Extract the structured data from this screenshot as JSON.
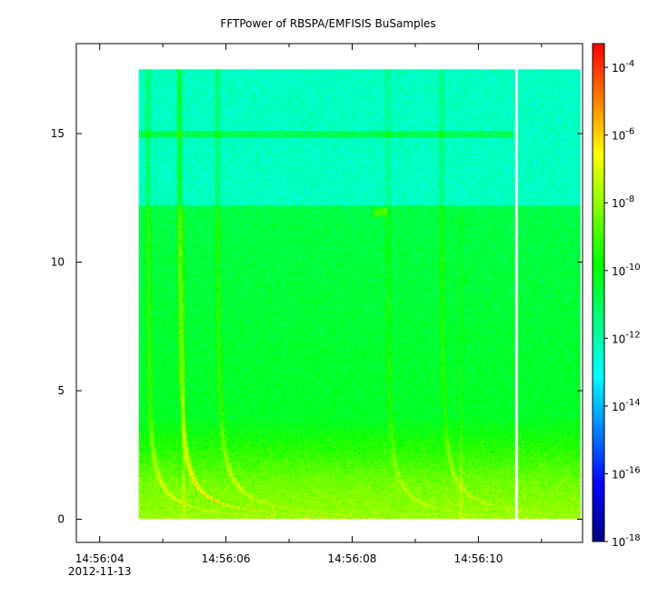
{
  "chart_data": {
    "type": "heatmap",
    "title": "FFTPower of RBSPA/EMFISIS  BuSamples",
    "xlabel": "",
    "ylabel": "",
    "x_ticks": [
      {
        "label": "14:56:04",
        "sublabel": "2012-11-13",
        "value": 4
      },
      {
        "label": "14:56:06",
        "value": 6
      },
      {
        "label": "14:56:08",
        "value": 8
      },
      {
        "label": "14:56:10",
        "value": 10
      }
    ],
    "x_minor_ticks": [
      5,
      7,
      9,
      11
    ],
    "xlim": [
      3.63,
      11.65
    ],
    "y_ticks": [
      0,
      5,
      10,
      15
    ],
    "ylim": [
      -0.9,
      18.5
    ],
    "data_x_range": [
      4.62,
      11.62
    ],
    "data_y_range": [
      0,
      17.5
    ],
    "gap_x_range": [
      10.57,
      10.62
    ],
    "colorbar": {
      "scale": "log",
      "range_exp": [
        -18,
        -3.3
      ],
      "ticks": [
        {
          "base": "10",
          "exp": "-4",
          "value_exp": -4
        },
        {
          "base": "10",
          "exp": "-6",
          "value_exp": -6
        },
        {
          "base": "10",
          "exp": "-8",
          "value_exp": -8
        },
        {
          "base": "10",
          "exp": "-10",
          "value_exp": -10
        },
        {
          "base": "10",
          "exp": "-12",
          "value_exp": -12
        },
        {
          "base": "10",
          "exp": "-14",
          "value_exp": -14
        },
        {
          "base": "10",
          "exp": "-16",
          "value_exp": -16
        },
        {
          "base": "10",
          "exp": "-18",
          "value_exp": -18
        }
      ],
      "colors": [
        "#000080",
        "#0000ff",
        "#0080ff",
        "#00ffff",
        "#00ff80",
        "#00ff00",
        "#80ff00",
        "#ffff00",
        "#ff8000",
        "#ff0000"
      ]
    }
  }
}
